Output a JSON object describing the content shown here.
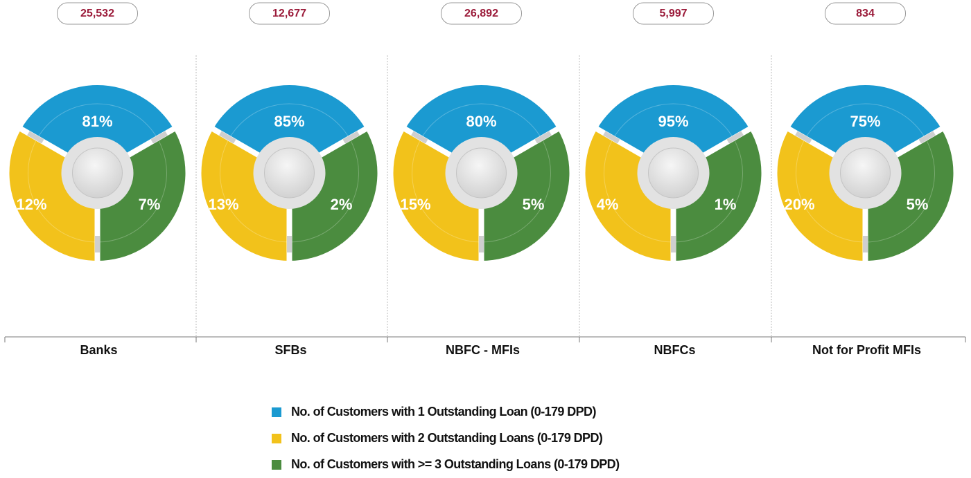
{
  "panels": [
    {
      "total": "25,532",
      "label": "Banks",
      "shares": [
        "81%",
        "12%",
        "7%"
      ]
    },
    {
      "total": "12,677",
      "label": "SFBs",
      "shares": [
        "85%",
        "13%",
        "2%"
      ]
    },
    {
      "total": "26,892",
      "label": "NBFC - MFIs",
      "shares": [
        "80%",
        "15%",
        "5%"
      ]
    },
    {
      "total": "5,997",
      "label": "NBFCs",
      "shares": [
        "95%",
        "4%",
        "1%"
      ]
    },
    {
      "total": "834",
      "label": "Not for Profit MFIs",
      "shares": [
        "75%",
        "20%",
        "5%"
      ]
    }
  ],
  "legend": [
    {
      "name": "No. of Customers with 1 Outstanding Loan (0-179 DPD)",
      "color": "#1b9ad1"
    },
    {
      "name": "No. of Customers with 2 Outstanding Loans (0-179 DPD)",
      "color": "#f2c21b"
    },
    {
      "name": "No. of Customers with >= 3 Outstanding Loans (0-179 DPD)",
      "color": "#4b8c3f"
    }
  ]
}
